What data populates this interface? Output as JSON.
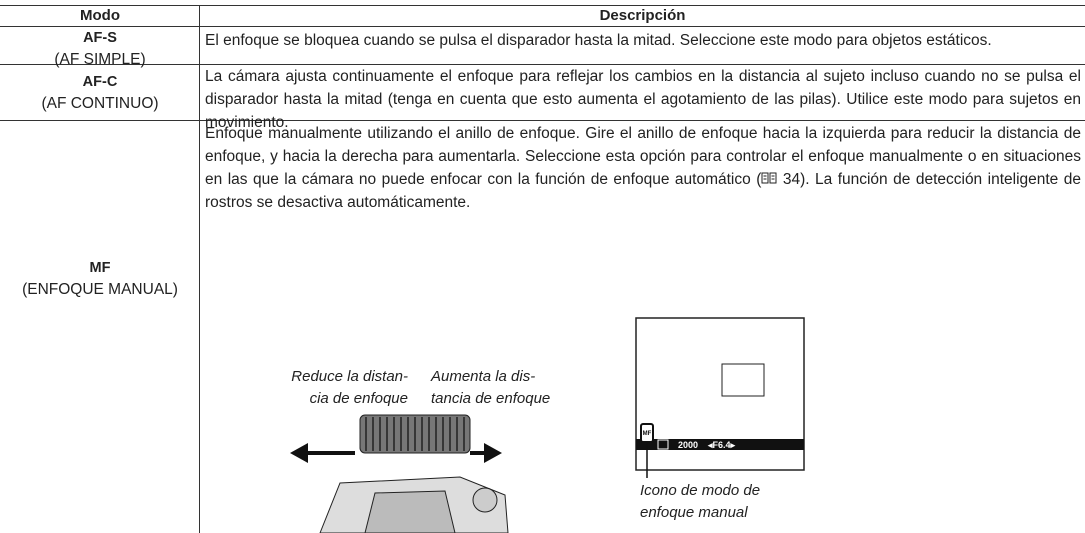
{
  "table": {
    "header": [
      "Modo",
      "Descripción"
    ],
    "rows": [
      {
        "code": "AF-S",
        "name": "(AF SIMPLE)",
        "description": "El enfoque se bloquea cuando se pulsa el disparador hasta la mitad. Seleccione este modo para objetos estáticos."
      },
      {
        "code": "AF-C",
        "name": "(AF CONTINUO)",
        "description": "La cámara ajusta continuamente el enfoque para reflejar los cambios en la distancia al sujeto incluso cuando no se pulsa el disparador hasta la mitad (tenga en cuenta que esto aumenta el agotamiento de las pilas). Utilice este modo para sujetos en movimiento."
      },
      {
        "code": "MF",
        "name": "(ENFOQUE MANUAL)",
        "description": "Enfoque manualmente utilizando el anillo de enfoque. Gire el anillo de enfoque hacia la izquierda para reducir la distancia de enfoque, y hacia la derecha para aumentarla. Seleccione esta opción para controlar el enfoque manualmente o en situaciones en las que la cámara no puede enfocar con la función de enfoque automático (",
        "reference": "34",
        "description_end": "). La función de detección inteligente de rostros se desactiva automáticamente."
      }
    ]
  },
  "illustration": {
    "dial_left": [
      "Reduce la distan-",
      "cia de enfoque"
    ],
    "dial_right": [
      "Aumenta la dis-",
      "tancia de enfoque"
    ],
    "shutter": "2000",
    "aperture": "◂F6.4▸",
    "icon": "MF",
    "icon_caption": [
      "Icono de modo de",
      "enfoque manual"
    ]
  }
}
